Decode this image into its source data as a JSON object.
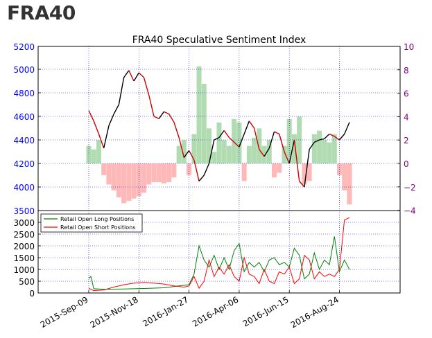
{
  "page": {
    "heading": "FRA40"
  },
  "colors": {
    "left_axis": "#0000ff",
    "right_axis": "#7f007f",
    "price_up": "#000000",
    "price_down": "#cc0000",
    "bar_positive": "#a8d8a8",
    "bar_negative": "#ffb0b0",
    "long_line": "#008000",
    "short_line": "#ff0000",
    "grid": "#0000cc"
  },
  "chart_data": [
    {
      "type": "line",
      "title": "FRA40 Speculative Sentiment Index",
      "description_series": [
        "price",
        "sentiment_bars"
      ],
      "x_ticks": [
        "2015-Sep-09",
        "2015-Nov-18",
        "2016-Jan-27",
        "2016-Apr-06",
        "2016-Jun-15",
        "2016-Aug-24"
      ],
      "ylim_left": [
        3500,
        5200
      ],
      "yticks_left": [
        "3500",
        "4000",
        "4200",
        "4400",
        "4600",
        "4800",
        "5000",
        "5200"
      ],
      "ylim_right": [
        -4,
        10
      ],
      "yticks_right": [
        "−4",
        "−2",
        "0",
        "2",
        "4",
        "6",
        "8",
        "10"
      ],
      "grid": true,
      "price_series": [
        [
          "2015-09-09",
          4650
        ],
        [
          "2015-09-16",
          4560
        ],
        [
          "2015-09-23",
          4450
        ],
        [
          "2015-09-30",
          4330
        ],
        [
          "2015-10-07",
          4520
        ],
        [
          "2015-10-14",
          4620
        ],
        [
          "2015-10-21",
          4700
        ],
        [
          "2015-10-28",
          4930
        ],
        [
          "2015-11-04",
          4990
        ],
        [
          "2015-11-11",
          4900
        ],
        [
          "2015-11-18",
          4970
        ],
        [
          "2015-11-25",
          4930
        ],
        [
          "2015-12-02",
          4780
        ],
        [
          "2015-12-09",
          4600
        ],
        [
          "2015-12-16",
          4580
        ],
        [
          "2015-12-23",
          4640
        ],
        [
          "2015-12-30",
          4620
        ],
        [
          "2016-01-06",
          4550
        ],
        [
          "2016-01-13",
          4420
        ],
        [
          "2016-01-20",
          4250
        ],
        [
          "2016-01-27",
          4310
        ],
        [
          "2016-02-03",
          4230
        ],
        [
          "2016-02-10",
          4050
        ],
        [
          "2016-02-17",
          4100
        ],
        [
          "2016-02-24",
          4200
        ],
        [
          "2016-03-02",
          4400
        ],
        [
          "2016-03-09",
          4420
        ],
        [
          "2016-03-16",
          4480
        ],
        [
          "2016-03-23",
          4420
        ],
        [
          "2016-03-30",
          4380
        ],
        [
          "2016-04-06",
          4340
        ],
        [
          "2016-04-13",
          4450
        ],
        [
          "2016-04-20",
          4560
        ],
        [
          "2016-04-27",
          4500
        ],
        [
          "2016-05-04",
          4320
        ],
        [
          "2016-05-11",
          4260
        ],
        [
          "2016-05-18",
          4330
        ],
        [
          "2016-05-25",
          4470
        ],
        [
          "2016-06-01",
          4450
        ],
        [
          "2016-06-08",
          4300
        ],
        [
          "2016-06-15",
          4200
        ],
        [
          "2016-06-22",
          4400
        ],
        [
          "2016-06-29",
          4050
        ],
        [
          "2016-07-06",
          4000
        ],
        [
          "2016-07-13",
          4320
        ],
        [
          "2016-07-20",
          4380
        ],
        [
          "2016-07-27",
          4400
        ],
        [
          "2016-08-03",
          4410
        ],
        [
          "2016-08-10",
          4450
        ],
        [
          "2016-08-17",
          4430
        ],
        [
          "2016-08-24",
          4400
        ],
        [
          "2016-08-31",
          4450
        ],
        [
          "2016-09-07",
          4550
        ]
      ],
      "sentiment_bars": [
        [
          "2015-09-09",
          1.5
        ],
        [
          "2015-09-16",
          1.2
        ],
        [
          "2015-09-23",
          2.0
        ],
        [
          "2015-09-30",
          -1.0
        ],
        [
          "2015-10-07",
          -1.8
        ],
        [
          "2015-10-14",
          -2.3
        ],
        [
          "2015-10-21",
          -2.9
        ],
        [
          "2015-10-28",
          -3.4
        ],
        [
          "2015-11-04",
          -3.2
        ],
        [
          "2015-11-11",
          -3.0
        ],
        [
          "2015-11-18",
          -2.8
        ],
        [
          "2015-11-25",
          -2.5
        ],
        [
          "2015-12-02",
          -1.8
        ],
        [
          "2015-12-09",
          -1.6
        ],
        [
          "2015-12-16",
          -1.6
        ],
        [
          "2015-12-23",
          -1.7
        ],
        [
          "2015-12-30",
          -1.6
        ],
        [
          "2016-01-06",
          -1.2
        ],
        [
          "2016-01-13",
          1.5
        ],
        [
          "2016-01-20",
          2.0
        ],
        [
          "2016-01-27",
          -1.0
        ],
        [
          "2016-02-03",
          2.5
        ],
        [
          "2016-02-10",
          8.3
        ],
        [
          "2016-02-17",
          6.8
        ],
        [
          "2016-02-24",
          3.0
        ],
        [
          "2016-03-02",
          1.0
        ],
        [
          "2016-03-09",
          3.5
        ],
        [
          "2016-03-16",
          2.0
        ],
        [
          "2016-03-23",
          1.5
        ],
        [
          "2016-03-30",
          3.8
        ],
        [
          "2016-04-06",
          3.5
        ],
        [
          "2016-04-13",
          -1.5
        ],
        [
          "2016-04-20",
          1.5
        ],
        [
          "2016-04-27",
          2.2
        ],
        [
          "2016-05-04",
          3.0
        ],
        [
          "2016-05-11",
          1.5
        ],
        [
          "2016-05-18",
          2.0
        ],
        [
          "2016-05-25",
          -1.2
        ],
        [
          "2016-06-01",
          -0.8
        ],
        [
          "2016-06-08",
          1.5
        ],
        [
          "2016-06-15",
          3.8
        ],
        [
          "2016-06-22",
          2.5
        ],
        [
          "2016-06-29",
          4.0
        ],
        [
          "2016-07-06",
          -1.8
        ],
        [
          "2016-07-13",
          -1.5
        ],
        [
          "2016-07-20",
          2.5
        ],
        [
          "2016-07-27",
          2.8
        ],
        [
          "2016-08-03",
          2.0
        ],
        [
          "2016-08-10",
          1.8
        ],
        [
          "2016-08-17",
          2.5
        ],
        [
          "2016-08-24",
          -1.0
        ],
        [
          "2016-08-31",
          -2.3
        ],
        [
          "2016-09-07",
          -3.5
        ]
      ]
    },
    {
      "type": "line",
      "ylim": [
        0,
        3500
      ],
      "yticks": [
        "0",
        "500",
        "1000",
        "1500",
        "2000",
        "2500",
        "3000"
      ],
      "legend_placement": "top-left",
      "series": [
        {
          "name": "Retail Open Long Positions",
          "points": [
            [
              "2015-09-09",
              620
            ],
            [
              "2015-09-12",
              700
            ],
            [
              "2015-09-16",
              180
            ],
            [
              "2015-09-30",
              160
            ],
            [
              "2015-10-28",
              170
            ],
            [
              "2015-11-25",
              190
            ],
            [
              "2015-12-23",
              220
            ],
            [
              "2016-01-13",
              300
            ],
            [
              "2016-01-27",
              350
            ],
            [
              "2016-02-03",
              800
            ],
            [
              "2016-02-10",
              2000
            ],
            [
              "2016-02-17",
              1400
            ],
            [
              "2016-02-24",
              1100
            ],
            [
              "2016-03-02",
              1600
            ],
            [
              "2016-03-09",
              1000
            ],
            [
              "2016-03-16",
              1500
            ],
            [
              "2016-03-23",
              1000
            ],
            [
              "2016-03-30",
              1800
            ],
            [
              "2016-04-06",
              2100
            ],
            [
              "2016-04-13",
              900
            ],
            [
              "2016-04-20",
              1300
            ],
            [
              "2016-04-27",
              1100
            ],
            [
              "2016-05-04",
              1300
            ],
            [
              "2016-05-11",
              900
            ],
            [
              "2016-05-18",
              1400
            ],
            [
              "2016-05-25",
              1500
            ],
            [
              "2016-06-01",
              1200
            ],
            [
              "2016-06-08",
              1300
            ],
            [
              "2016-06-15",
              1100
            ],
            [
              "2016-06-22",
              1900
            ],
            [
              "2016-06-29",
              1600
            ],
            [
              "2016-07-06",
              600
            ],
            [
              "2016-07-13",
              800
            ],
            [
              "2016-07-20",
              1700
            ],
            [
              "2016-07-27",
              1000
            ],
            [
              "2016-08-03",
              1400
            ],
            [
              "2016-08-10",
              1200
            ],
            [
              "2016-08-17",
              2400
            ],
            [
              "2016-08-24",
              900
            ],
            [
              "2016-08-31",
              1400
            ],
            [
              "2016-09-07",
              1000
            ]
          ]
        },
        {
          "name": "Retail Open Short Positions",
          "points": [
            [
              "2015-09-09",
              200
            ],
            [
              "2015-09-16",
              100
            ],
            [
              "2015-09-30",
              130
            ],
            [
              "2015-10-14",
              250
            ],
            [
              "2015-10-28",
              350
            ],
            [
              "2015-11-11",
              420
            ],
            [
              "2015-11-25",
              450
            ],
            [
              "2015-12-09",
              420
            ],
            [
              "2015-12-23",
              380
            ],
            [
              "2016-01-06",
              300
            ],
            [
              "2016-01-20",
              250
            ],
            [
              "2016-01-27",
              300
            ],
            [
              "2016-02-03",
              700
            ],
            [
              "2016-02-10",
              200
            ],
            [
              "2016-02-17",
              500
            ],
            [
              "2016-02-24",
              1400
            ],
            [
              "2016-03-02",
              700
            ],
            [
              "2016-03-09",
              1100
            ],
            [
              "2016-03-16",
              800
            ],
            [
              "2016-03-23",
              1200
            ],
            [
              "2016-03-30",
              700
            ],
            [
              "2016-04-06",
              500
            ],
            [
              "2016-04-13",
              1500
            ],
            [
              "2016-04-20",
              800
            ],
            [
              "2016-04-27",
              700
            ],
            [
              "2016-05-04",
              400
            ],
            [
              "2016-05-11",
              1000
            ],
            [
              "2016-05-18",
              500
            ],
            [
              "2016-05-25",
              400
            ],
            [
              "2016-06-01",
              900
            ],
            [
              "2016-06-08",
              800
            ],
            [
              "2016-06-15",
              1100
            ],
            [
              "2016-06-22",
              400
            ],
            [
              "2016-06-29",
              600
            ],
            [
              "2016-07-06",
              1600
            ],
            [
              "2016-07-13",
              1400
            ],
            [
              "2016-07-20",
              600
            ],
            [
              "2016-07-27",
              900
            ],
            [
              "2016-08-03",
              700
            ],
            [
              "2016-08-10",
              800
            ],
            [
              "2016-08-17",
              700
            ],
            [
              "2016-08-24",
              1000
            ],
            [
              "2016-08-31",
              3100
            ],
            [
              "2016-09-07",
              3200
            ]
          ]
        }
      ]
    }
  ]
}
